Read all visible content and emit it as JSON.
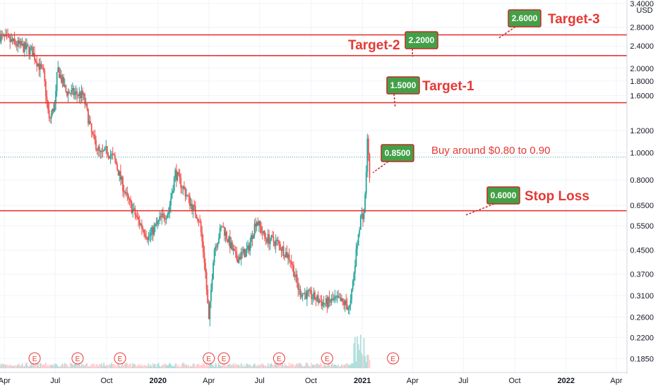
{
  "chart_data": {
    "type": "candlestick",
    "currency_label": "USD",
    "y_scale": "log",
    "ylim": [
      0.17,
      3.4
    ],
    "y_ticks": [
      "3.4000",
      "2.8000",
      "2.4000",
      "2.0000",
      "1.8000",
      "1.6000",
      "1.2000",
      "1.0000",
      "0.8000",
      "0.6500",
      "0.5500",
      "0.4500",
      "0.3700",
      "0.3100",
      "0.2600",
      "0.2200",
      "0.1850"
    ],
    "x_ticks": [
      "Apr",
      "Jul",
      "Oct",
      "2020",
      "Apr",
      "Jul",
      "Oct",
      "2021",
      "Apr",
      "Jul",
      "Oct",
      "2022",
      "Apr"
    ],
    "x_tick_dates": [
      "2019-04-01",
      "2019-07-01",
      "2019-10-01",
      "2020-01-01",
      "2020-04-01",
      "2020-07-01",
      "2020-10-01",
      "2021-01-01",
      "2021-04-01",
      "2021-07-01",
      "2021-10-01",
      "2022-01-01",
      "2022-04-01"
    ],
    "x_range": [
      "2019-03-24",
      "2022-04-20"
    ],
    "price_path": [
      [
        "2019-03-24",
        2.6
      ],
      [
        "2019-04-20",
        2.45
      ],
      [
        "2019-05-20",
        2.3
      ],
      [
        "2019-06-10",
        1.9
      ],
      [
        "2019-06-20",
        1.3
      ],
      [
        "2019-07-01",
        1.5
      ],
      [
        "2019-07-05",
        2.0
      ],
      [
        "2019-07-20",
        1.65
      ],
      [
        "2019-08-20",
        1.6
      ],
      [
        "2019-09-05",
        1.15
      ],
      [
        "2019-09-20",
        0.98
      ],
      [
        "2019-10-01",
        1.02
      ],
      [
        "2019-10-15",
        0.95
      ],
      [
        "2019-11-05",
        0.7
      ],
      [
        "2019-11-25",
        0.58
      ],
      [
        "2019-12-15",
        0.5
      ],
      [
        "2020-01-05",
        0.58
      ],
      [
        "2020-01-20",
        0.62
      ],
      [
        "2020-02-01",
        0.85
      ],
      [
        "2020-02-15",
        0.75
      ],
      [
        "2020-03-01",
        0.65
      ],
      [
        "2020-03-15",
        0.58
      ],
      [
        "2020-03-25",
        0.4
      ],
      [
        "2020-04-01",
        0.25
      ],
      [
        "2020-04-10",
        0.45
      ],
      [
        "2020-04-25",
        0.55
      ],
      [
        "2020-05-20",
        0.42
      ],
      [
        "2020-06-10",
        0.45
      ],
      [
        "2020-06-25",
        0.58
      ],
      [
        "2020-07-10",
        0.5
      ],
      [
        "2020-08-01",
        0.48
      ],
      [
        "2020-08-25",
        0.42
      ],
      [
        "2020-09-10",
        0.32
      ],
      [
        "2020-10-01",
        0.31
      ],
      [
        "2020-10-25",
        0.29
      ],
      [
        "2020-11-15",
        0.3
      ],
      [
        "2020-12-01",
        0.29
      ],
      [
        "2020-12-10",
        0.28
      ],
      [
        "2020-12-20",
        0.42
      ],
      [
        "2020-12-28",
        0.58
      ],
      [
        "2021-01-05",
        0.62
      ],
      [
        "2021-01-10",
        1.1
      ],
      [
        "2021-01-14",
        0.85
      ]
    ],
    "horizontal_levels": [
      {
        "tag": "2.6299",
        "value": 2.6299
      },
      {
        "tag": "2.2185",
        "value": 2.2185
      },
      {
        "tag": "1.5080",
        "value": 1.508
      },
      {
        "tag": "0.9650",
        "value": 0.965,
        "style": "dotted",
        "current_price": true
      },
      {
        "tag": "0.6221",
        "value": 0.6221
      }
    ],
    "callouts": [
      {
        "value_label": "2.6000",
        "text": "Target-3",
        "anchor_date": "2021-09-01",
        "anchor_value": 2.55
      },
      {
        "value_label": "2.2000",
        "text": "Target-2",
        "anchor_date": "2021-04-01",
        "anchor_value": 2.2
      },
      {
        "value_label": "1.5000",
        "text": "Target-1",
        "anchor_date": "2021-03-01",
        "anchor_value": 1.45
      },
      {
        "value_label": "0.8500",
        "text": "Buy around $0.80 to 0.90",
        "anchor_date": "2021-01-20",
        "anchor_value": 0.85
      },
      {
        "value_label": "0.6000",
        "text": "Stop Loss",
        "anchor_date": "2021-07-05",
        "anchor_value": 0.6
      }
    ],
    "event_markers": [
      "E",
      "E",
      "E",
      "E",
      "E",
      "E",
      "E",
      "E"
    ],
    "event_dates": [
      "2019-05-25",
      "2019-08-10",
      "2019-10-25",
      "2020-04-01",
      "2020-04-28",
      "2020-08-05",
      "2020-10-30",
      "2021-02-25"
    ],
    "colors": {
      "up": "#26a69a",
      "down": "#ef5350",
      "level": "#e53935",
      "current_price": "#26a69a",
      "callout_fill": "#43a047",
      "callout_border": "#c62828",
      "event": "#e53935"
    }
  }
}
